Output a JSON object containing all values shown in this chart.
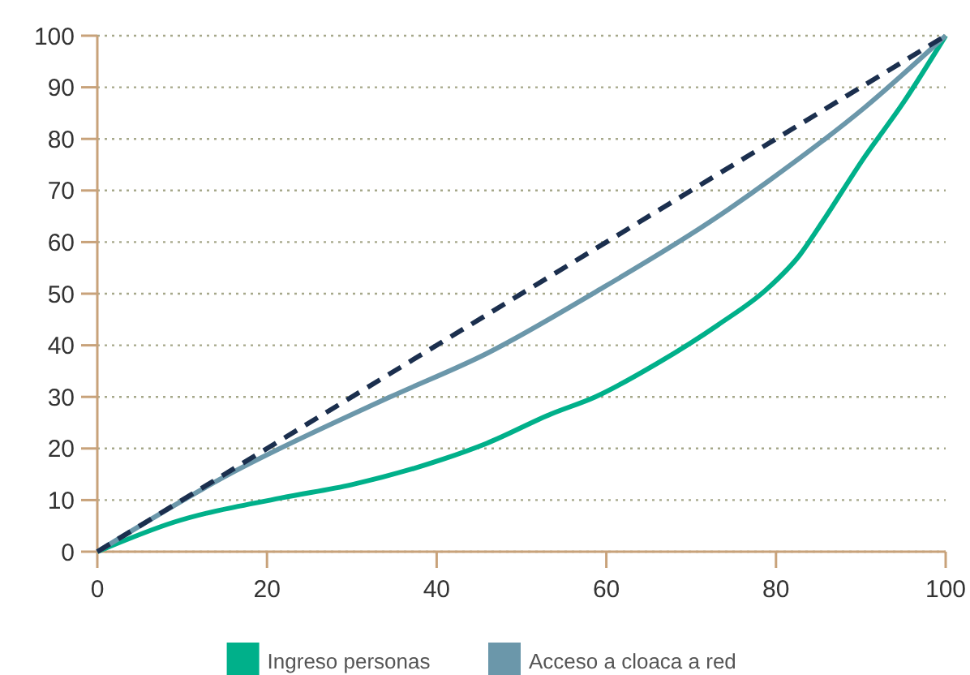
{
  "chart_data": {
    "type": "line",
    "xlim": [
      0,
      100
    ],
    "ylim": [
      0,
      100
    ],
    "xticks": [
      0,
      20,
      40,
      60,
      80,
      100
    ],
    "yticks": [
      0,
      10,
      20,
      30,
      40,
      50,
      60,
      70,
      80,
      90,
      100
    ],
    "grid": "y",
    "legend": "bottom",
    "series": [
      {
        "name": "Ingreso personas",
        "color": "#00b08a",
        "x": [
          0,
          9,
          21.6,
          30,
          40.7,
          45.9,
          53.5,
          58.7,
          66,
          73.2,
          79,
          82.8,
          85.5,
          90.4,
          95,
          100
        ],
        "values": [
          0,
          5.7,
          10.4,
          13,
          17.9,
          21,
          26.7,
          30,
          36.5,
          44,
          51,
          57.5,
          64,
          76.4,
          87,
          100
        ]
      },
      {
        "name": "Acceso a cloaca a red",
        "color": "#6b97aa",
        "x": [
          0,
          15.3,
          34.4,
          45.9,
          58.7,
          73.2,
          79,
          90.4,
          100
        ],
        "values": [
          0,
          14.8,
          29.9,
          38.4,
          50.3,
          65,
          71.7,
          86,
          100
        ]
      },
      {
        "color": "#1b2f4e",
        "line_style": "dashed",
        "x": [
          0,
          100
        ],
        "values": [
          0,
          100
        ]
      }
    ]
  }
}
